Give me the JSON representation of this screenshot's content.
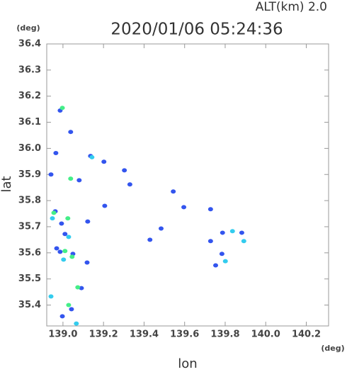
{
  "chart_data": {
    "type": "scatter",
    "title": "2020/01/06 05:24:36",
    "subtitle": "ALT(km)  2.0",
    "x_label": "lon",
    "y_label": "lat",
    "x_unit": "(deg)",
    "y_unit": "(deg)",
    "xlim": [
      138.92,
      140.31
    ],
    "ylim": [
      35.32,
      36.4
    ],
    "xticks": [
      {
        "value": 139,
        "label": "139.0"
      },
      139.2,
      139.4,
      139.6,
      139.8,
      {
        "value": 140,
        "label": "140.0"
      },
      140.2
    ],
    "yticks": [
      35.4,
      35.5,
      35.6,
      35.7,
      35.8,
      35.9,
      {
        "value": 36,
        "label": "36.0"
      },
      36.1,
      36.2,
      36.3,
      36.4
    ],
    "series": [
      {
        "color": "#3355ee",
        "x": [
          138.986,
          138.965,
          139.038,
          138.941,
          139.08,
          139.202,
          139.303,
          139.33,
          139.206,
          139.122,
          138.962,
          138.993,
          139.01,
          138.969,
          138.986,
          139.049,
          139.119,
          139.091,
          138.997,
          139.042,
          139.596,
          139.544,
          139.728,
          139.787,
          139.882,
          139.728,
          139.784,
          139.753,
          139.429,
          139.484,
          139.136
        ],
        "values": [
          36.145,
          35.982,
          36.063,
          35.9,
          35.878,
          35.949,
          35.916,
          35.862,
          35.78,
          35.72,
          35.759,
          35.712,
          35.672,
          35.617,
          35.604,
          35.596,
          35.563,
          35.465,
          35.357,
          35.384,
          35.775,
          35.835,
          35.767,
          35.677,
          35.677,
          35.645,
          35.596,
          35.552,
          35.65,
          35.693,
          35.971
        ]
      },
      {
        "color": "#33ccee",
        "x": [
          139.143,
          138.948,
          139.028,
          139.003,
          138.941,
          139.801,
          139.836,
          139.892,
          139.066
        ],
        "values": [
          35.966,
          35.732,
          35.661,
          35.574,
          35.433,
          35.568,
          35.683,
          35.645,
          35.329
        ]
      },
      {
        "color": "#44ee88",
        "x": [
          138.997,
          139.038,
          139.024,
          138.955,
          139.01,
          139.045,
          139.028,
          139.073
        ],
        "values": [
          36.155,
          35.884,
          35.732,
          35.753,
          35.607,
          35.585,
          35.4,
          35.468
        ]
      }
    ]
  }
}
